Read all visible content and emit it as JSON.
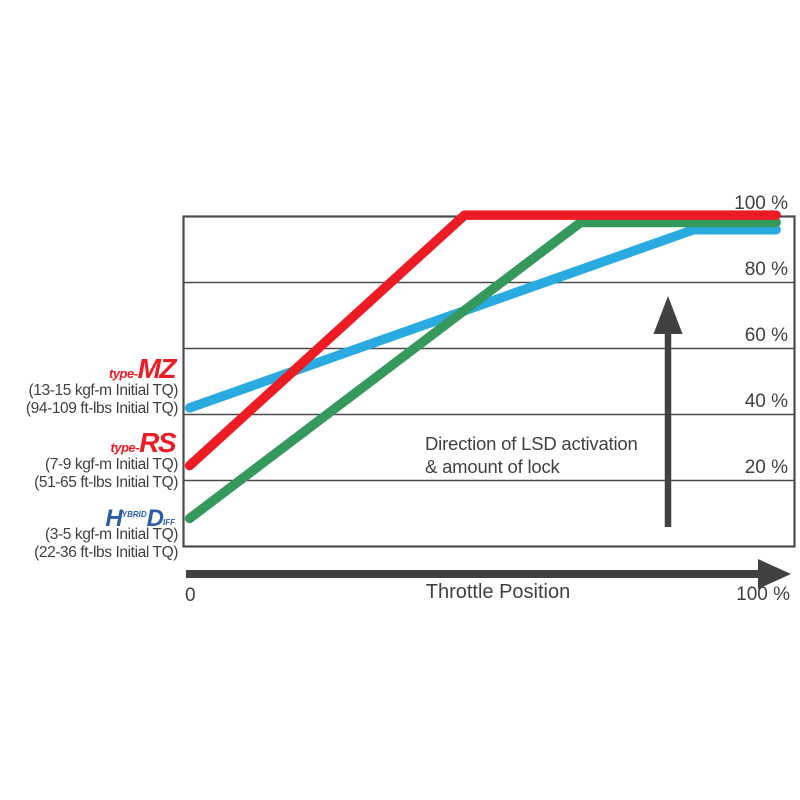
{
  "chart_data": {
    "type": "line",
    "xlabel": "Throttle Position",
    "ylabel": "",
    "xlim": [
      0,
      100
    ],
    "ylim": [
      0,
      100
    ],
    "x_tick_labels": [
      "0",
      "100 %"
    ],
    "y_tick_values": [
      20,
      40,
      60,
      80,
      100
    ],
    "y_tick_labels": [
      "20 %",
      "40 %",
      "60 %",
      "80 %",
      "100 %"
    ],
    "grid": "horizontal",
    "legend_position": "outside-left",
    "series": [
      {
        "id": "type-mz",
        "name": "type-MZ (13-15 kgf-m / 94-109 ft-lbs Initial TQ)",
        "color": "#29ABE2",
        "points": [
          [
            1,
            42
          ],
          [
            83.5,
            96
          ],
          [
            97,
            96
          ]
        ]
      },
      {
        "id": "hybrid-diff-hd",
        "name": "HYBRID Diff HD (3-5 kgf-m / 22-36 ft-lbs Initial TQ)",
        "color": "#36995C",
        "points": [
          [
            1,
            8.5
          ],
          [
            65,
            98.2
          ],
          [
            97,
            98.2
          ]
        ]
      },
      {
        "id": "type-rs",
        "name": "type-RS (7-9 kgf-m / 51-65 ft-lbs Initial TQ)",
        "color": "#ED1C24",
        "points": [
          [
            1,
            24.5
          ],
          [
            46,
            100.4
          ],
          [
            97,
            100.4
          ]
        ]
      }
    ],
    "annotations": [
      "Direction of LSD activation & amount of lock (upward arrow)"
    ]
  },
  "legend": {
    "items": [
      {
        "name": "type-MZ",
        "logo_prefix": "type-",
        "logo_main": "MZ",
        "spec1": "(13-15 kgf-m Initial TQ)",
        "spec2": "(94-109 ft-lbs Initial TQ)"
      },
      {
        "name": "type-RS",
        "logo_prefix": "type-",
        "logo_main": "RS",
        "spec1": "(7-9 kgf-m Initial TQ)",
        "spec2": "(51-65 ft-lbs Initial TQ)"
      },
      {
        "name": "HYBRID Diff HD",
        "logo_h": "H",
        "logo_sup": "YBRID",
        "logo_d": "D",
        "logo_sub": "IFF",
        "spec1": "(3-5 kgf-m Initial TQ)",
        "spec2": "(22-36 ft-lbs Initial TQ)"
      }
    ]
  },
  "annotation": {
    "line1": "Direction of LSD activation",
    "line2": "& amount of lock"
  },
  "x_axis": {
    "zero_label": "0",
    "title": "Throttle Position",
    "max_label": "100 %"
  },
  "colors": {
    "red": "#ED1C24",
    "green": "#36995C",
    "blue": "#29ABE2",
    "hd_logo_blue": "#2B5DA9",
    "logo_red": "#ED1C24",
    "axis": "#414042",
    "grid": "#4A4B4D",
    "text": "#414042"
  }
}
